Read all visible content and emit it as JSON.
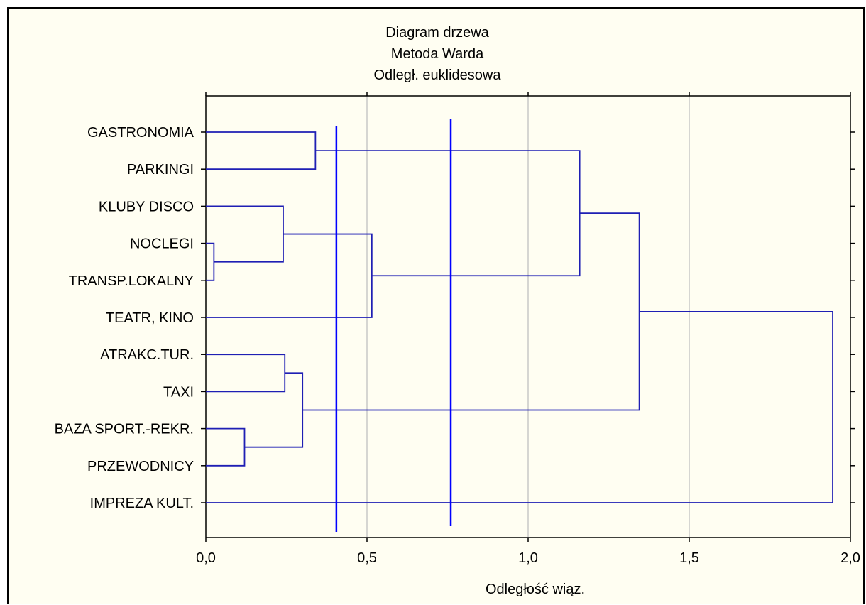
{
  "chart_data": {
    "type": "dendrogram",
    "title_lines": [
      "Diagram drzewa",
      "Metoda Warda",
      "Odległ. euklidesowa"
    ],
    "xlabel": "Odległość wiąz.",
    "ylabel": "",
    "xlim": [
      0,
      2.0
    ],
    "xticks": [
      0,
      0.5,
      1.0,
      1.5,
      2.0
    ],
    "xtick_labels": [
      "0,0",
      "0,5",
      "1,0",
      "1,5",
      "2,0"
    ],
    "grid_x": true,
    "leaves": [
      "GASTRONOMIA",
      "PARKINGI",
      "KLUBY DISCO",
      "NOCLEGI",
      "TRANSP.LOKALNY",
      "TEATR, KINO",
      "ATRAKC.TUR.",
      "TAXI",
      "BAZA SPORT.-REKR.",
      "PRZEWODNICY",
      "IMPREZA KULT."
    ],
    "merges": [
      {
        "id": "c1",
        "children": [
          "NOCLEGI",
          "TRANSP.LOKALNY"
        ],
        "height": 0.025
      },
      {
        "id": "c2",
        "children": [
          "BAZA SPORT.-REKR.",
          "PRZEWODNICY"
        ],
        "height": 0.12
      },
      {
        "id": "c3",
        "children": [
          "KLUBY DISCO",
          "c1"
        ],
        "height": 0.24
      },
      {
        "id": "c4",
        "children": [
          "ATRAKC.TUR.",
          "TAXI"
        ],
        "height": 0.245
      },
      {
        "id": "c5",
        "children": [
          "c4",
          "c2"
        ],
        "height": 0.3
      },
      {
        "id": "c6",
        "children": [
          "GASTRONOMIA",
          "PARKINGI"
        ],
        "height": 0.34
      },
      {
        "id": "c7",
        "children": [
          "c3",
          "TEATR, KINO"
        ],
        "height": 0.515
      },
      {
        "id": "c8",
        "children": [
          "c6",
          "c7"
        ],
        "height": 1.16
      },
      {
        "id": "c9",
        "children": [
          "c8",
          "c5"
        ],
        "height": 1.345
      },
      {
        "id": "c10",
        "children": [
          "c9",
          "IMPREZA KULT."
        ],
        "height": 1.945
      }
    ],
    "cut_lines": [
      0.405,
      0.76
    ],
    "line_color": "#1f1fb4",
    "cut_line_color": "#0000ff",
    "grid_color": "#c8c8c8"
  }
}
